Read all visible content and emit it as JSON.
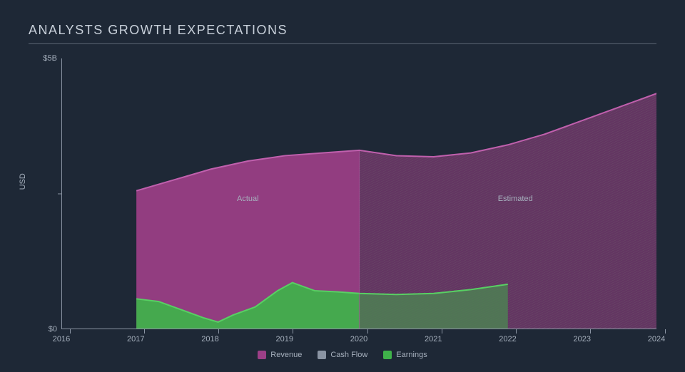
{
  "chart": {
    "type": "area",
    "title": "ANALYSTS GROWTH EXPECTATIONS",
    "background_color": "#1e2836",
    "text_color": "#a6b0bd",
    "title_color": "#c8d0da",
    "axis_line_color": "#8a94a3",
    "title_underline_color": "#5a6472",
    "title_fontsize": 18,
    "tick_fontsize": 11,
    "y": {
      "label": "USD",
      "min": 0,
      "max": 5,
      "ticks": [
        {
          "value": 0,
          "label": "$0"
        },
        {
          "value": 5,
          "label": "$5B"
        }
      ],
      "mid_tick": {
        "value": 2.5,
        "label": ""
      }
    },
    "x": {
      "min": 2016,
      "max": 2024,
      "ticks": [
        2016,
        2017,
        2018,
        2019,
        2020,
        2021,
        2022,
        2023,
        2024
      ]
    },
    "split_year": 2020,
    "regions": {
      "actual": {
        "label": "Actual",
        "center_year": 2018.5,
        "center_value": 2.4
      },
      "estimated": {
        "label": "Estimated",
        "center_year": 2022.1,
        "center_value": 2.4
      }
    },
    "series": {
      "revenue": {
        "label": "Revenue",
        "color": "#9c3f87",
        "color_light": "#c060ad",
        "actual": [
          {
            "x": 2017.0,
            "y": 2.55
          },
          {
            "x": 2017.5,
            "y": 2.75
          },
          {
            "x": 2018.0,
            "y": 2.95
          },
          {
            "x": 2018.5,
            "y": 3.1
          },
          {
            "x": 2019.0,
            "y": 3.2
          },
          {
            "x": 2019.5,
            "y": 3.25
          },
          {
            "x": 2020.0,
            "y": 3.3
          }
        ],
        "estimated": [
          {
            "x": 2020.0,
            "y": 3.3
          },
          {
            "x": 2020.5,
            "y": 3.2
          },
          {
            "x": 2021.0,
            "y": 3.18
          },
          {
            "x": 2021.5,
            "y": 3.25
          },
          {
            "x": 2022.0,
            "y": 3.4
          },
          {
            "x": 2022.5,
            "y": 3.6
          },
          {
            "x": 2023.0,
            "y": 3.85
          },
          {
            "x": 2023.5,
            "y": 4.1
          },
          {
            "x": 2024.0,
            "y": 4.35
          },
          {
            "x": 2024.3,
            "y": 4.4
          }
        ]
      },
      "cashflow": {
        "label": "Cash Flow",
        "color": "#8a94a3",
        "actual": [],
        "estimated": []
      },
      "earnings": {
        "label": "Earnings",
        "color": "#3fb24a",
        "color_light": "#58d063",
        "actual": [
          {
            "x": 2017.0,
            "y": 0.55
          },
          {
            "x": 2017.3,
            "y": 0.5
          },
          {
            "x": 2017.6,
            "y": 0.35
          },
          {
            "x": 2017.9,
            "y": 0.2
          },
          {
            "x": 2018.1,
            "y": 0.12
          },
          {
            "x": 2018.3,
            "y": 0.25
          },
          {
            "x": 2018.6,
            "y": 0.4
          },
          {
            "x": 2018.9,
            "y": 0.7
          },
          {
            "x": 2019.1,
            "y": 0.85
          },
          {
            "x": 2019.4,
            "y": 0.7
          },
          {
            "x": 2019.7,
            "y": 0.68
          },
          {
            "x": 2020.0,
            "y": 0.65
          }
        ],
        "estimated": [
          {
            "x": 2020.0,
            "y": 0.65
          },
          {
            "x": 2020.5,
            "y": 0.63
          },
          {
            "x": 2021.0,
            "y": 0.65
          },
          {
            "x": 2021.5,
            "y": 0.72
          },
          {
            "x": 2022.0,
            "y": 0.82
          }
        ]
      }
    },
    "legend": [
      {
        "key": "revenue",
        "label": "Revenue",
        "color": "#9c3f87"
      },
      {
        "key": "cashflow",
        "label": "Cash Flow",
        "color": "#8a94a3"
      },
      {
        "key": "earnings",
        "label": "Earnings",
        "color": "#3fb24a"
      }
    ],
    "hatch": {
      "stroke": "#6a5a68",
      "stroke_earnings": "#4a7a4e",
      "spacing": 6,
      "angle": 45
    }
  }
}
